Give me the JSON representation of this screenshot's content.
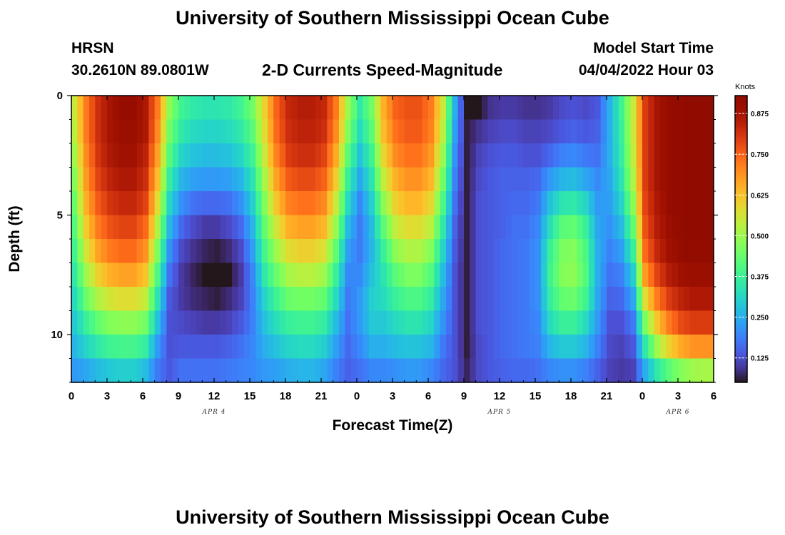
{
  "header": {
    "title": "University of Southern Mississippi Ocean Cube",
    "station": "HRSN",
    "coordinates": "30.2610N  89.0801W",
    "plot_title": "2-D Currents Speed-Magnitude",
    "model_label": "Model Start Time",
    "model_time": "04/04/2022 Hour 03"
  },
  "footer": {
    "title": "University of Southern Mississippi Ocean Cube"
  },
  "chart_data": {
    "type": "heatmap",
    "title": "2-D Currents Speed-Magnitude",
    "xlabel": "Forecast Time(Z)",
    "ylabel": "Depth (ft)",
    "colorbar_label": "Knots",
    "x_tick_labels": [
      "0",
      "3",
      "6",
      "9",
      "12",
      "15",
      "18",
      "21",
      "0",
      "3",
      "6",
      "9",
      "12",
      "15",
      "18",
      "21",
      "0",
      "3",
      "6"
    ],
    "x_range_hours": [
      0,
      54
    ],
    "day_labels": [
      {
        "label": "APR 4",
        "hour": 12
      },
      {
        "label": "APR 5",
        "hour": 36
      },
      {
        "label": "APR 6",
        "hour": 51
      }
    ],
    "y_ticks": [
      0,
      5,
      10
    ],
    "y_tick_labels": [
      "0",
      "5",
      "10"
    ],
    "ylim": [
      0,
      12
    ],
    "y_inverted": true,
    "colorbar_ticks": [
      0.125,
      0.25,
      0.375,
      0.5,
      0.625,
      0.75,
      0.875
    ],
    "colorbar_tick_labels": [
      "0.125",
      "0.250",
      "0.375",
      "0.500",
      "0.625",
      "0.750",
      "0.875"
    ],
    "colorbar_range": [
      0.05,
      0.93
    ],
    "colormap": "turbo",
    "depth_levels_ft": [
      0.5,
      1.5,
      2.5,
      3.5,
      4.5,
      5.5,
      6.5,
      7.5,
      8.5,
      9.5,
      10.5,
      11.5
    ],
    "profiles": [
      {
        "hour": 0,
        "values": [
          0.55,
          0.53,
          0.5,
          0.47,
          0.44,
          0.41,
          0.38,
          0.35,
          0.32,
          0.29,
          0.26,
          0.22
        ]
      },
      {
        "hour": 1,
        "values": [
          0.72,
          0.72,
          0.7,
          0.68,
          0.65,
          0.61,
          0.56,
          0.5,
          0.44,
          0.37,
          0.31,
          0.24
        ]
      },
      {
        "hour": 2,
        "values": [
          0.82,
          0.82,
          0.81,
          0.79,
          0.76,
          0.72,
          0.67,
          0.6,
          0.52,
          0.43,
          0.35,
          0.27
        ]
      },
      {
        "hour": 3,
        "values": [
          0.87,
          0.87,
          0.86,
          0.84,
          0.81,
          0.77,
          0.72,
          0.65,
          0.56,
          0.47,
          0.38,
          0.29
        ]
      },
      {
        "hour": 4,
        "values": [
          0.9,
          0.89,
          0.88,
          0.86,
          0.83,
          0.79,
          0.74,
          0.67,
          0.58,
          0.48,
          0.39,
          0.3
        ]
      },
      {
        "hour": 5,
        "values": [
          0.9,
          0.89,
          0.88,
          0.86,
          0.83,
          0.79,
          0.74,
          0.67,
          0.58,
          0.48,
          0.39,
          0.3
        ]
      },
      {
        "hour": 6,
        "values": [
          0.86,
          0.86,
          0.84,
          0.82,
          0.79,
          0.74,
          0.69,
          0.62,
          0.54,
          0.45,
          0.36,
          0.27
        ]
      },
      {
        "hour": 7,
        "values": [
          0.72,
          0.7,
          0.67,
          0.63,
          0.58,
          0.52,
          0.46,
          0.4,
          0.34,
          0.28,
          0.22,
          0.18
        ]
      },
      {
        "hour": 8,
        "values": [
          0.48,
          0.45,
          0.41,
          0.36,
          0.31,
          0.26,
          0.21,
          0.17,
          0.14,
          0.13,
          0.13,
          0.14
        ]
      },
      {
        "hour": 9,
        "values": [
          0.38,
          0.35,
          0.31,
          0.26,
          0.21,
          0.16,
          0.12,
          0.1,
          0.1,
          0.12,
          0.14,
          0.17
        ]
      },
      {
        "hour": 10,
        "values": [
          0.35,
          0.32,
          0.28,
          0.23,
          0.17,
          0.12,
          0.09,
          0.07,
          0.08,
          0.11,
          0.14,
          0.17
        ]
      },
      {
        "hour": 11,
        "values": [
          0.34,
          0.31,
          0.27,
          0.22,
          0.16,
          0.1,
          0.07,
          0.05,
          0.07,
          0.1,
          0.14,
          0.17
        ]
      },
      {
        "hour": 12,
        "values": [
          0.34,
          0.31,
          0.27,
          0.22,
          0.16,
          0.1,
          0.06,
          0.03,
          0.06,
          0.1,
          0.14,
          0.17
        ]
      },
      {
        "hour": 13,
        "values": [
          0.35,
          0.32,
          0.28,
          0.23,
          0.17,
          0.12,
          0.08,
          0.05,
          0.08,
          0.11,
          0.15,
          0.18
        ]
      },
      {
        "hour": 14,
        "values": [
          0.38,
          0.35,
          0.31,
          0.26,
          0.21,
          0.16,
          0.12,
          0.1,
          0.11,
          0.14,
          0.17,
          0.19
        ]
      },
      {
        "hour": 15,
        "values": [
          0.45,
          0.42,
          0.38,
          0.34,
          0.3,
          0.26,
          0.23,
          0.2,
          0.19,
          0.19,
          0.2,
          0.2
        ]
      },
      {
        "hour": 16,
        "values": [
          0.6,
          0.58,
          0.55,
          0.51,
          0.47,
          0.43,
          0.39,
          0.35,
          0.31,
          0.28,
          0.25,
          0.22
        ]
      },
      {
        "hour": 17,
        "values": [
          0.75,
          0.74,
          0.71,
          0.67,
          0.62,
          0.56,
          0.5,
          0.44,
          0.38,
          0.33,
          0.28,
          0.23
        ]
      },
      {
        "hour": 18,
        "values": [
          0.83,
          0.82,
          0.8,
          0.76,
          0.71,
          0.65,
          0.58,
          0.51,
          0.44,
          0.37,
          0.31,
          0.25
        ]
      },
      {
        "hour": 19,
        "values": [
          0.85,
          0.84,
          0.82,
          0.78,
          0.73,
          0.67,
          0.6,
          0.53,
          0.45,
          0.38,
          0.32,
          0.26
        ]
      },
      {
        "hour": 20,
        "values": [
          0.85,
          0.84,
          0.82,
          0.78,
          0.73,
          0.67,
          0.6,
          0.53,
          0.45,
          0.38,
          0.32,
          0.26
        ]
      },
      {
        "hour": 21,
        "values": [
          0.83,
          0.82,
          0.79,
          0.75,
          0.7,
          0.64,
          0.57,
          0.5,
          0.43,
          0.36,
          0.3,
          0.24
        ]
      },
      {
        "hour": 22,
        "values": [
          0.72,
          0.7,
          0.66,
          0.61,
          0.55,
          0.49,
          0.43,
          0.37,
          0.32,
          0.27,
          0.23,
          0.19
        ]
      },
      {
        "hour": 23,
        "values": [
          0.5,
          0.47,
          0.42,
          0.37,
          0.32,
          0.27,
          0.23,
          0.2,
          0.18,
          0.17,
          0.16,
          0.15
        ]
      },
      {
        "hour": 24,
        "values": [
          0.35,
          0.32,
          0.28,
          0.24,
          0.2,
          0.18,
          0.18,
          0.2,
          0.22,
          0.22,
          0.2,
          0.17
        ]
      },
      {
        "hour": 25,
        "values": [
          0.45,
          0.42,
          0.38,
          0.34,
          0.3,
          0.27,
          0.26,
          0.28,
          0.3,
          0.29,
          0.25,
          0.2
        ]
      },
      {
        "hour": 26,
        "values": [
          0.65,
          0.63,
          0.59,
          0.54,
          0.48,
          0.42,
          0.37,
          0.34,
          0.32,
          0.29,
          0.25,
          0.2
        ]
      },
      {
        "hour": 27,
        "values": [
          0.75,
          0.73,
          0.7,
          0.65,
          0.6,
          0.54,
          0.48,
          0.42,
          0.37,
          0.32,
          0.27,
          0.21
        ]
      },
      {
        "hour": 28,
        "values": [
          0.77,
          0.76,
          0.73,
          0.69,
          0.64,
          0.58,
          0.52,
          0.46,
          0.4,
          0.34,
          0.28,
          0.22
        ]
      },
      {
        "hour": 29,
        "values": [
          0.77,
          0.76,
          0.73,
          0.69,
          0.64,
          0.58,
          0.52,
          0.46,
          0.4,
          0.34,
          0.28,
          0.22
        ]
      },
      {
        "hour": 30,
        "values": [
          0.72,
          0.71,
          0.68,
          0.64,
          0.59,
          0.53,
          0.47,
          0.41,
          0.36,
          0.31,
          0.26,
          0.2
        ]
      },
      {
        "hour": 31,
        "values": [
          0.55,
          0.53,
          0.49,
          0.45,
          0.4,
          0.35,
          0.31,
          0.27,
          0.24,
          0.21,
          0.18,
          0.16
        ]
      },
      {
        "hour": 32,
        "values": [
          0.25,
          0.23,
          0.21,
          0.19,
          0.17,
          0.15,
          0.14,
          0.13,
          0.13,
          0.13,
          0.13,
          0.13
        ]
      },
      {
        "hour": 33,
        "values": [
          0.05,
          0.06,
          0.06,
          0.06,
          0.06,
          0.06,
          0.06,
          0.06,
          0.06,
          0.06,
          0.06,
          0.07
        ]
      },
      {
        "hour": 34,
        "values": [
          0.05,
          0.09,
          0.11,
          0.12,
          0.13,
          0.13,
          0.13,
          0.13,
          0.13,
          0.13,
          0.12,
          0.12
        ]
      },
      {
        "hour": 35,
        "values": [
          0.09,
          0.11,
          0.13,
          0.14,
          0.14,
          0.14,
          0.14,
          0.14,
          0.14,
          0.14,
          0.14,
          0.14
        ]
      },
      {
        "hour": 36,
        "values": [
          0.1,
          0.12,
          0.14,
          0.15,
          0.15,
          0.15,
          0.16,
          0.16,
          0.16,
          0.16,
          0.16,
          0.15
        ]
      },
      {
        "hour": 37,
        "values": [
          0.1,
          0.12,
          0.14,
          0.15,
          0.16,
          0.17,
          0.17,
          0.17,
          0.17,
          0.17,
          0.17,
          0.16
        ]
      },
      {
        "hour": 38,
        "values": [
          0.09,
          0.11,
          0.13,
          0.15,
          0.16,
          0.17,
          0.18,
          0.18,
          0.18,
          0.18,
          0.18,
          0.16
        ]
      },
      {
        "hour": 39,
        "values": [
          0.09,
          0.11,
          0.13,
          0.16,
          0.18,
          0.2,
          0.21,
          0.21,
          0.21,
          0.2,
          0.19,
          0.17
        ]
      },
      {
        "hour": 40,
        "values": [
          0.1,
          0.12,
          0.16,
          0.22,
          0.28,
          0.33,
          0.37,
          0.38,
          0.36,
          0.32,
          0.26,
          0.2
        ]
      },
      {
        "hour": 41,
        "values": [
          0.12,
          0.14,
          0.19,
          0.26,
          0.34,
          0.42,
          0.46,
          0.47,
          0.43,
          0.37,
          0.29,
          0.21
        ]
      },
      {
        "hour": 42,
        "values": [
          0.13,
          0.15,
          0.2,
          0.27,
          0.35,
          0.43,
          0.47,
          0.48,
          0.44,
          0.37,
          0.29,
          0.21
        ]
      },
      {
        "hour": 43,
        "values": [
          0.12,
          0.14,
          0.18,
          0.24,
          0.31,
          0.37,
          0.4,
          0.41,
          0.38,
          0.32,
          0.26,
          0.19
        ]
      },
      {
        "hour": 44,
        "values": [
          0.14,
          0.15,
          0.17,
          0.2,
          0.22,
          0.24,
          0.25,
          0.25,
          0.24,
          0.22,
          0.19,
          0.15
        ]
      },
      {
        "hour": 45,
        "values": [
          0.25,
          0.25,
          0.25,
          0.24,
          0.23,
          0.21,
          0.19,
          0.17,
          0.15,
          0.13,
          0.12,
          0.11
        ]
      },
      {
        "hour": 46,
        "values": [
          0.38,
          0.37,
          0.36,
          0.34,
          0.31,
          0.27,
          0.23,
          0.19,
          0.16,
          0.13,
          0.11,
          0.1
        ]
      },
      {
        "hour": 47,
        "values": [
          0.55,
          0.55,
          0.54,
          0.52,
          0.48,
          0.43,
          0.37,
          0.3,
          0.24,
          0.18,
          0.14,
          0.11
        ]
      },
      {
        "hour": 48,
        "values": [
          0.8,
          0.8,
          0.8,
          0.8,
          0.79,
          0.77,
          0.74,
          0.68,
          0.58,
          0.46,
          0.35,
          0.25
        ]
      },
      {
        "hour": 49,
        "values": [
          0.87,
          0.87,
          0.87,
          0.87,
          0.86,
          0.85,
          0.83,
          0.79,
          0.72,
          0.62,
          0.5,
          0.35
        ]
      },
      {
        "hour": 50,
        "values": [
          0.9,
          0.9,
          0.9,
          0.9,
          0.9,
          0.89,
          0.88,
          0.85,
          0.8,
          0.72,
          0.6,
          0.42
        ]
      },
      {
        "hour": 51,
        "values": [
          0.91,
          0.91,
          0.91,
          0.91,
          0.91,
          0.91,
          0.9,
          0.88,
          0.84,
          0.78,
          0.66,
          0.47
        ]
      },
      {
        "hour": 52,
        "values": [
          0.92,
          0.92,
          0.92,
          0.92,
          0.92,
          0.92,
          0.91,
          0.89,
          0.86,
          0.8,
          0.69,
          0.5
        ]
      },
      {
        "hour": 53,
        "values": [
          0.92,
          0.92,
          0.92,
          0.92,
          0.92,
          0.92,
          0.91,
          0.89,
          0.86,
          0.8,
          0.69,
          0.51
        ]
      },
      {
        "hour": 54,
        "values": [
          0.92,
          0.92,
          0.92,
          0.92,
          0.92,
          0.92,
          0.91,
          0.89,
          0.86,
          0.8,
          0.69,
          0.51
        ]
      }
    ]
  }
}
